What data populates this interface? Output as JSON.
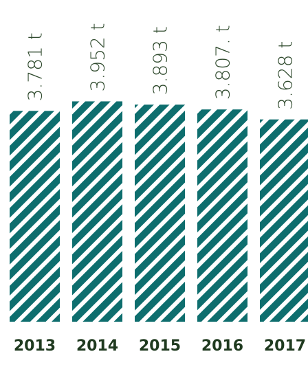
{
  "chart_data": {
    "type": "bar",
    "categories": [
      "2013",
      "2014",
      "2015",
      "2016",
      "2017"
    ],
    "values": [
      3.781,
      3.952,
      3.893,
      3.807,
      3.628
    ],
    "data_labels": [
      "3.781 t",
      "3.952 t",
      "3.893 t",
      "3.807. t",
      "3.628 t"
    ],
    "title": "",
    "xlabel": "",
    "ylabel": "",
    "ylim": [
      0,
      5.77
    ],
    "grid": false,
    "colors": {
      "bar_stripe": "#0e6e6e",
      "bar_gap": "#ffffff",
      "value_text": "#2f4a2d",
      "year_text": "#1f3a1f"
    }
  }
}
